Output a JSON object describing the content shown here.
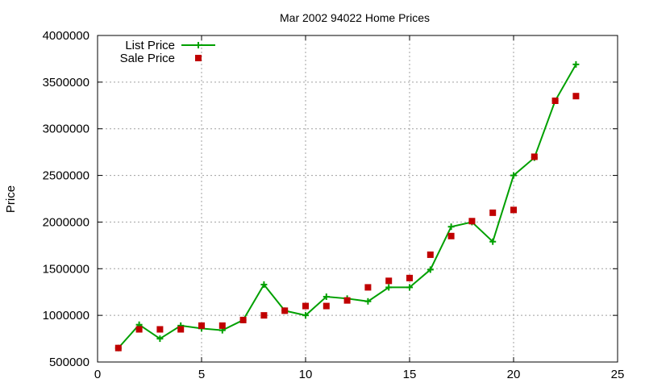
{
  "chart_data": {
    "type": "line",
    "title": "Mar 2002 94022 Home Prices",
    "xlabel": "",
    "ylabel": "Price",
    "xlim": [
      0,
      25
    ],
    "ylim": [
      500000,
      4000000
    ],
    "x_ticks": [
      0,
      5,
      10,
      15,
      20,
      25
    ],
    "y_ticks": [
      500000,
      1000000,
      1500000,
      2000000,
      2500000,
      3000000,
      3500000,
      4000000
    ],
    "grid": true,
    "legend_position": "top-left",
    "series": [
      {
        "name": "List Price",
        "style": "line-with-plus-markers",
        "color": "#00a000",
        "x": [
          1,
          2,
          3,
          4,
          5,
          6,
          7,
          8,
          9,
          10,
          11,
          12,
          13,
          14,
          15,
          16,
          17,
          18,
          19,
          20,
          21,
          22,
          23
        ],
        "y": [
          650000,
          900000,
          750000,
          890000,
          860000,
          840000,
          950000,
          1330000,
          1050000,
          1000000,
          1200000,
          1180000,
          1150000,
          1300000,
          1300000,
          1490000,
          1950000,
          2000000,
          1790000,
          2500000,
          2690000,
          3300000,
          3690000
        ]
      },
      {
        "name": "Sale Price",
        "style": "square-markers",
        "color": "#c00000",
        "x": [
          1,
          2,
          3,
          4,
          5,
          6,
          7,
          8,
          9,
          10,
          11,
          12,
          13,
          14,
          15,
          16,
          17,
          18,
          19,
          20,
          21,
          22,
          23
        ],
        "y": [
          650000,
          850000,
          850000,
          850000,
          890000,
          890000,
          950000,
          1000000,
          1050000,
          1100000,
          1100000,
          1160000,
          1300000,
          1370000,
          1400000,
          1650000,
          1850000,
          2010000,
          2100000,
          2130000,
          2700000,
          3300000,
          3350000
        ]
      }
    ]
  }
}
